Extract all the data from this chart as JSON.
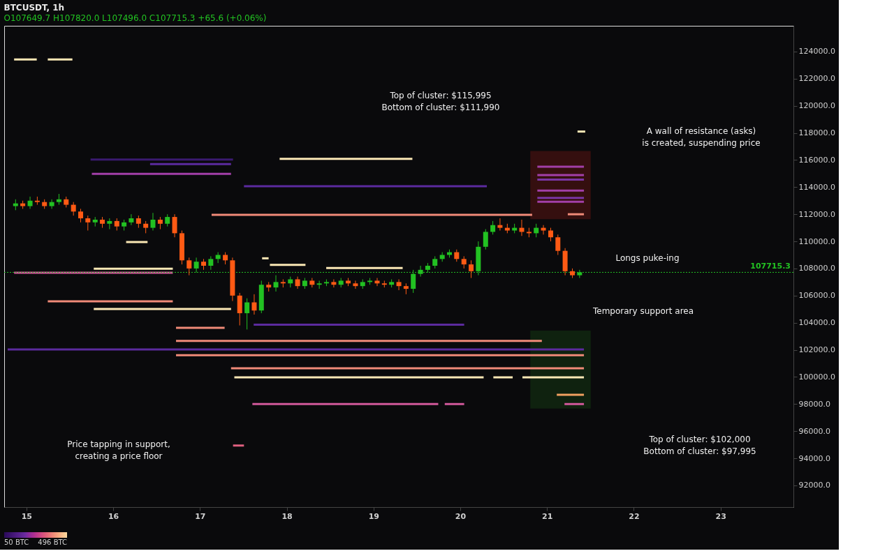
{
  "chart_data": {
    "type": "candlestick",
    "title": "BTCUSDT, 1h",
    "subtitle": "O107649.7  H107820.0  L107496.0  C107715.3  +65.6 (+0.06%)",
    "xlim": [
      14.784,
      23.799
    ],
    "xticks": [
      15,
      16,
      17,
      18,
      19,
      20,
      21,
      22,
      23
    ],
    "ylim": [
      90400,
      125900
    ],
    "yticks": [
      {
        "value": 92000,
        "label": "92000.0"
      },
      {
        "value": 94000,
        "label": "94000.0"
      },
      {
        "value": 96000,
        "label": "96000.0"
      },
      {
        "value": 98000,
        "label": "98000.0"
      },
      {
        "value": 100000,
        "label": "100000.0"
      },
      {
        "value": 102000,
        "label": "102000.0"
      },
      {
        "value": 104000,
        "label": "104000.0"
      },
      {
        "value": 106000,
        "label": "106000.0"
      },
      {
        "value": 108000,
        "label": "108000.0"
      },
      {
        "value": 110000,
        "label": "110000.0"
      },
      {
        "value": 112000,
        "label": "112000.0"
      },
      {
        "value": 114000,
        "label": "114000.0"
      },
      {
        "value": 116000,
        "label": "116000.0"
      },
      {
        "value": 118000,
        "label": "118000.0"
      },
      {
        "value": 120000,
        "label": "120000.0"
      },
      {
        "value": 122000,
        "label": "122000.0"
      },
      {
        "value": 124000,
        "label": "124000.0"
      }
    ],
    "clim": [
      50,
      496
    ],
    "cticks": [
      {
        "value": 50,
        "label": "50 BTC"
      },
      {
        "value": 496,
        "label": "496 BTC"
      }
    ],
    "grid": false,
    "ref_lines": [
      {
        "axis": "y",
        "value": 107715.3,
        "label": "107715.3",
        "color": "#22c122",
        "line_style": "dotted"
      }
    ],
    "annotations": [
      "Top of cluster: $115,995\nBottom of cluster: $111,990",
      "A wall of resistance (asks)\nis created, suspending price",
      "Longs puke-ing",
      "Temporary support area",
      "Top of cluster: $102,000\nBottom of cluster: $97,995",
      "Price tapping in support,\ncreating a price floor"
    ],
    "series": [
      {
        "type": "bar",
        "color": "#3a1010",
        "x": [
          21.155
        ],
        "base": [
          111630
        ],
        "values": [
          5030
        ]
      },
      {
        "type": "bar",
        "color": "#0f2510",
        "x": [
          21.155
        ],
        "base": [
          97670
        ],
        "values": [
          5750
        ]
      },
      {
        "type": "line",
        "color": "#fbe8b5",
        "x": [
          14.858,
          15.119
        ],
        "values": [
          123420,
          123420
        ]
      },
      {
        "type": "line",
        "color": "#fbe8b5",
        "x": [
          15.246,
          15.53
        ],
        "values": [
          123420,
          123420
        ]
      },
      {
        "type": "line",
        "color": "#fbe8b5",
        "x": [
          17.918,
          19.448
        ],
        "values": [
          116090,
          116090
        ]
      },
      {
        "type": "line",
        "color": "#3a1a70",
        "x": [
          15.739,
          17.381
        ],
        "values": [
          116040,
          116040
        ]
      },
      {
        "type": "line",
        "color": "#5b2a9e",
        "x": [
          16.425,
          17.358
        ],
        "values": [
          115700,
          115700
        ]
      },
      {
        "type": "line",
        "color": "#a23fa8",
        "x": [
          15.754,
          17.358
        ],
        "values": [
          114980,
          114980
        ]
      },
      {
        "type": "line",
        "color": "#5b2a9e",
        "x": [
          17.507,
          20.306
        ],
        "values": [
          114070,
          114070
        ]
      },
      {
        "type": "line",
        "color": "#f08a78",
        "x": [
          17.134,
          20.828
        ],
        "values": [
          111960,
          111960
        ]
      },
      {
        "type": "line",
        "color": "#fbe8b5",
        "x": [
          16.149,
          16.396
        ],
        "values": [
          109950,
          109950
        ]
      },
      {
        "type": "line",
        "color": "#fbe8b5",
        "x": [
          17.716,
          17.791
        ],
        "values": [
          108750,
          108750
        ]
      },
      {
        "type": "line",
        "color": "#fbe8b5",
        "x": [
          17.806,
          18.216
        ],
        "values": [
          108270,
          108270
        ]
      },
      {
        "type": "line",
        "color": "#fbe8b5",
        "x": [
          18.455,
          19.336
        ],
        "values": [
          108030,
          108030
        ]
      },
      {
        "type": "line",
        "color": "#fbe8b5",
        "x": [
          15.776,
          16.687
        ],
        "values": [
          107980,
          107980
        ]
      },
      {
        "type": "line",
        "color": "#d0589a",
        "x": [
          14.858,
          16.687
        ],
        "values": [
          107690,
          107690
        ]
      },
      {
        "type": "line",
        "color": "#f08a78",
        "x": [
          15.246,
          16.687
        ],
        "values": [
          105580,
          105580
        ]
      },
      {
        "type": "line",
        "color": "#fbe8b5",
        "x": [
          15.776,
          17.358
        ],
        "values": [
          105010,
          105010
        ]
      },
      {
        "type": "line",
        "color": "#5b2a9e",
        "x": [
          17.619,
          20.045
        ],
        "values": [
          103860,
          103860
        ]
      },
      {
        "type": "line",
        "color": "#f08a78",
        "x": [
          16.724,
          17.284
        ],
        "values": [
          103620,
          103620
        ]
      },
      {
        "type": "line",
        "color": "#f08a78",
        "x": [
          16.724,
          20.94
        ],
        "values": [
          102660,
          102660
        ]
      },
      {
        "type": "line",
        "color": "#5b2a9e",
        "x": [
          14.784,
          21.425
        ],
        "values": [
          102030,
          102030
        ]
      },
      {
        "type": "line",
        "color": "#f08a78",
        "x": [
          16.724,
          21.425
        ],
        "values": [
          101600,
          101600
        ]
      },
      {
        "type": "line",
        "color": "#f08a78",
        "x": [
          17.358,
          21.425
        ],
        "values": [
          100640,
          100640
        ]
      },
      {
        "type": "line",
        "color": "#fbe8b5",
        "x": [
          17.396,
          20.269
        ],
        "values": [
          99970,
          99970
        ]
      },
      {
        "type": "line",
        "color": "#fbe8b5",
        "x": [
          20.381,
          20.604
        ],
        "values": [
          99970,
          99970
        ]
      },
      {
        "type": "line",
        "color": "#fbe8b5",
        "x": [
          20.716,
          21.425
        ],
        "values": [
          99970,
          99970
        ]
      },
      {
        "type": "line",
        "color": "#f0a060",
        "x": [
          21.112,
          21.425
        ],
        "values": [
          98680,
          98680
        ]
      },
      {
        "type": "line",
        "color": "#d0589a",
        "x": [
          17.604,
          19.746
        ],
        "values": [
          98000,
          98000
        ]
      },
      {
        "type": "line",
        "color": "#d0589a",
        "x": [
          19.821,
          20.045
        ],
        "values": [
          98000,
          98000
        ]
      },
      {
        "type": "line",
        "color": "#d0589a",
        "x": [
          21.201,
          21.425
        ],
        "values": [
          98000,
          98000
        ]
      },
      {
        "type": "line",
        "color": "#e06080",
        "x": [
          17.381,
          17.507
        ],
        "values": [
          94940,
          94940
        ]
      },
      {
        "type": "line",
        "color": "#fbe8b5",
        "x": [
          21.351,
          21.44
        ],
        "values": [
          118100,
          118100
        ]
      },
      {
        "type": "line",
        "color": "#a23fa8",
        "x": [
          20.888,
          21.425
        ],
        "values": [
          115510,
          115510
        ]
      },
      {
        "type": "line",
        "color": "#a23fa8",
        "x": [
          20.888,
          21.425
        ],
        "values": [
          114890,
          114890
        ]
      },
      {
        "type": "line",
        "color": "#7a35a5",
        "x": [
          20.888,
          21.425
        ],
        "values": [
          114550,
          114550
        ]
      },
      {
        "type": "line",
        "color": "#a23fa8",
        "x": [
          20.888,
          21.425
        ],
        "values": [
          113740,
          113740
        ]
      },
      {
        "type": "line",
        "color": "#7a35a5",
        "x": [
          20.888,
          21.425
        ],
        "values": [
          113210,
          113210
        ]
      },
      {
        "type": "line",
        "color": "#a23fa8",
        "x": [
          20.888,
          21.425
        ],
        "values": [
          112920,
          112920
        ]
      },
      {
        "type": "line",
        "color": "#f08a78",
        "x": [
          21.239,
          21.425
        ],
        "values": [
          112000,
          112000
        ]
      },
      {
        "color": "#22c122",
        "x": [
          14.875,
          15.042,
          15.292,
          15.375,
          15.792,
          15.958,
          16.125,
          16.208,
          16.458,
          16.625,
          16.958,
          17.125,
          17.208,
          17.542,
          17.708,
          17.875,
          18.042,
          18.208,
          18.375,
          18.458,
          18.625,
          18.875,
          18.958,
          19.208,
          19.458,
          19.542,
          19.625,
          19.708,
          19.792,
          19.875,
          20.208,
          20.292,
          20.375,
          20.625,
          20.875,
          21.375
        ],
        "ohlc": [
          [
            112600,
            113100,
            112300,
            112800
          ],
          [
            112600,
            113300,
            112400,
            113000
          ],
          [
            112600,
            113100,
            112400,
            112900
          ],
          [
            112900,
            113500,
            112700,
            113100
          ],
          [
            111400,
            111800,
            111100,
            111600
          ],
          [
            111300,
            111700,
            110900,
            111500
          ],
          [
            111100,
            111600,
            110800,
            111400
          ],
          [
            111400,
            112000,
            111200,
            111700
          ],
          [
            111000,
            112100,
            110800,
            111600
          ],
          [
            111300,
            112000,
            111100,
            111800
          ],
          [
            108000,
            108800,
            107700,
            108500
          ],
          [
            108200,
            108900,
            107900,
            108700
          ],
          [
            108700,
            109200,
            108400,
            109000
          ],
          [
            104700,
            105800,
            103500,
            105500
          ],
          [
            104900,
            107100,
            104700,
            106800
          ],
          [
            106600,
            107500,
            106300,
            107000
          ],
          [
            106900,
            107400,
            106600,
            107200
          ],
          [
            106700,
            107300,
            106500,
            107100
          ],
          [
            106800,
            107100,
            106500,
            106900
          ],
          [
            106900,
            107200,
            106700,
            107000
          ],
          [
            106800,
            107300,
            106600,
            107100
          ],
          [
            106700,
            107200,
            106500,
            107000
          ],
          [
            107000,
            107300,
            106800,
            107100
          ],
          [
            106800,
            107200,
            106600,
            107000
          ],
          [
            106500,
            107900,
            106200,
            107600
          ],
          [
            107600,
            108200,
            107400,
            107900
          ],
          [
            107900,
            108400,
            107700,
            108200
          ],
          [
            108200,
            108900,
            108000,
            108700
          ],
          [
            108700,
            109200,
            108500,
            109000
          ],
          [
            109000,
            109400,
            108800,
            109200
          ],
          [
            107800,
            110000,
            107500,
            109600
          ],
          [
            109600,
            110900,
            109400,
            110700
          ],
          [
            110700,
            111500,
            110500,
            111200
          ],
          [
            110800,
            111300,
            110600,
            111000
          ],
          [
            110600,
            111300,
            110300,
            111000
          ],
          [
            107500,
            107900,
            107300,
            107715.3
          ]
        ]
      },
      {
        "color": "#ff5a14",
        "x": [
          14.958,
          15.125,
          15.208,
          15.458,
          15.542,
          15.625,
          15.708,
          15.875,
          16.042,
          16.292,
          16.375,
          16.542,
          16.708,
          16.792,
          16.875,
          17.042,
          17.292,
          17.375,
          17.458,
          17.625,
          17.792,
          17.958,
          18.125,
          18.292,
          18.542,
          18.708,
          18.792,
          19.042,
          19.125,
          19.292,
          19.375,
          19.958,
          20.042,
          20.125,
          20.458,
          20.542,
          20.708,
          20.792,
          20.958,
          21.042,
          21.125,
          21.208,
          21.292
        ],
        "ohlc": [
          [
            112800,
            113000,
            112400,
            112600
          ],
          [
            113000,
            113300,
            112700,
            112900
          ],
          [
            112900,
            113100,
            112400,
            112600
          ],
          [
            113100,
            113300,
            112500,
            112700
          ],
          [
            112700,
            112900,
            111900,
            112200
          ],
          [
            112200,
            112400,
            111400,
            111700
          ],
          [
            111700,
            111900,
            110800,
            111400
          ],
          [
            111600,
            111800,
            111000,
            111300
          ],
          [
            111500,
            111700,
            110800,
            111100
          ],
          [
            111700,
            111900,
            111000,
            111300
          ],
          [
            111300,
            111500,
            110600,
            111000
          ],
          [
            111600,
            111800,
            110900,
            111300
          ],
          [
            111800,
            112000,
            110300,
            110600
          ],
          [
            110600,
            110800,
            108300,
            108600
          ],
          [
            108600,
            108800,
            107500,
            108000
          ],
          [
            108500,
            108700,
            107900,
            108200
          ],
          [
            109000,
            109200,
            108300,
            108600
          ],
          [
            108600,
            108800,
            105600,
            106000
          ],
          [
            106000,
            106200,
            103800,
            104700
          ],
          [
            105500,
            106100,
            104600,
            104900
          ],
          [
            106800,
            107000,
            106300,
            106600
          ],
          [
            107000,
            107200,
            106600,
            106900
          ],
          [
            107200,
            107400,
            106500,
            106700
          ],
          [
            107100,
            107300,
            106600,
            106800
          ],
          [
            107000,
            107200,
            106600,
            106800
          ],
          [
            107100,
            107300,
            106700,
            106900
          ],
          [
            106900,
            107100,
            106500,
            106700
          ],
          [
            107100,
            107300,
            106700,
            106900
          ],
          [
            106900,
            107100,
            106600,
            106800
          ],
          [
            107000,
            107200,
            106400,
            106700
          ],
          [
            106700,
            106900,
            106100,
            106500
          ],
          [
            109200,
            109400,
            108500,
            108700
          ],
          [
            108700,
            108900,
            108000,
            108300
          ],
          [
            108300,
            108600,
            107300,
            107800
          ],
          [
            111200,
            111700,
            110800,
            111000
          ],
          [
            111000,
            111300,
            110600,
            110800
          ],
          [
            111000,
            111600,
            110400,
            110700
          ],
          [
            110700,
            111000,
            110300,
            110600
          ],
          [
            111000,
            111200,
            110500,
            110800
          ],
          [
            110800,
            111000,
            110000,
            110300
          ],
          [
            110300,
            110500,
            109000,
            109300
          ],
          [
            109300,
            109500,
            107500,
            107800
          ],
          [
            107800,
            108000,
            107300,
            107500
          ]
        ]
      }
    ]
  }
}
